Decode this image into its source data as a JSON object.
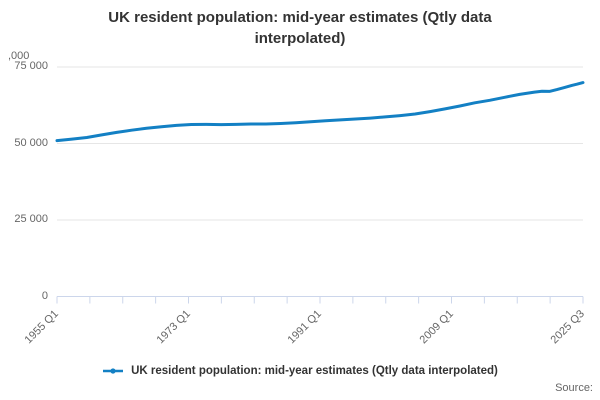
{
  "title": {
    "line1": "UK resident population: mid-year estimates (Qtly data",
    "line2": "interpolated)"
  },
  "y_axis": {
    "unit_label": ",000",
    "tick_labels": [
      "75 000",
      "50 000",
      "25 000",
      "0"
    ]
  },
  "legend": {
    "label": "UK resident population: mid-year estimates (Qtly data interpolated)"
  },
  "source": {
    "label": "Source:"
  },
  "colors": {
    "line": "#1380c4",
    "grid": "#e6e6e6",
    "axis": "#ccd6eb",
    "muted_text": "#666666",
    "title_text": "#333333"
  },
  "chart_data": {
    "type": "line",
    "title": "UK resident population: mid-year estimates (Qtly data interpolated)",
    "xlabel": "",
    "ylabel": ",000",
    "ylim": [
      0,
      75000
    ],
    "y_ticks": [
      0,
      25000,
      50000,
      75000
    ],
    "y_tick_labels": [
      "0",
      "25 000",
      "50 000",
      "75 000"
    ],
    "x_range": [
      1955.0,
      2025.5
    ],
    "x_tick_labels": [
      "1955 Q1",
      "1973 Q1",
      "1991 Q1",
      "2009 Q1",
      "2025 Q3"
    ],
    "x_unit": "year (quarterly interpolated)",
    "grid": "horizontal",
    "legend_position": "bottom",
    "series": [
      {
        "name": "UK resident population: mid-year estimates (Qtly data interpolated)",
        "points": [
          [
            1955.0,
            50950
          ],
          [
            1957.0,
            51430
          ],
          [
            1959.0,
            51960
          ],
          [
            1961.0,
            52810
          ],
          [
            1963.0,
            53630
          ],
          [
            1965.0,
            54350
          ],
          [
            1967.0,
            54960
          ],
          [
            1969.0,
            55460
          ],
          [
            1971.0,
            55930
          ],
          [
            1973.0,
            56220
          ],
          [
            1975.0,
            56230
          ],
          [
            1977.0,
            56190
          ],
          [
            1979.0,
            56240
          ],
          [
            1981.0,
            56360
          ],
          [
            1983.0,
            56380
          ],
          [
            1985.0,
            56550
          ],
          [
            1987.0,
            56800
          ],
          [
            1989.0,
            57080
          ],
          [
            1991.0,
            57440
          ],
          [
            1993.0,
            57710
          ],
          [
            1995.0,
            58020
          ],
          [
            1997.0,
            58310
          ],
          [
            1999.0,
            58680
          ],
          [
            2001.0,
            59110
          ],
          [
            2003.0,
            59640
          ],
          [
            2005.0,
            60410
          ],
          [
            2007.0,
            61320
          ],
          [
            2009.0,
            62260
          ],
          [
            2011.0,
            63290
          ],
          [
            2013.0,
            64110
          ],
          [
            2015.0,
            65110
          ],
          [
            2017.0,
            66040
          ],
          [
            2019.0,
            66800
          ],
          [
            2020.0,
            67080
          ],
          [
            2021.0,
            67030
          ],
          [
            2022.0,
            67600
          ],
          [
            2023.0,
            68270
          ],
          [
            2024.0,
            69000
          ],
          [
            2024.75,
            69400
          ],
          [
            2025.5,
            69900
          ]
        ]
      }
    ]
  }
}
